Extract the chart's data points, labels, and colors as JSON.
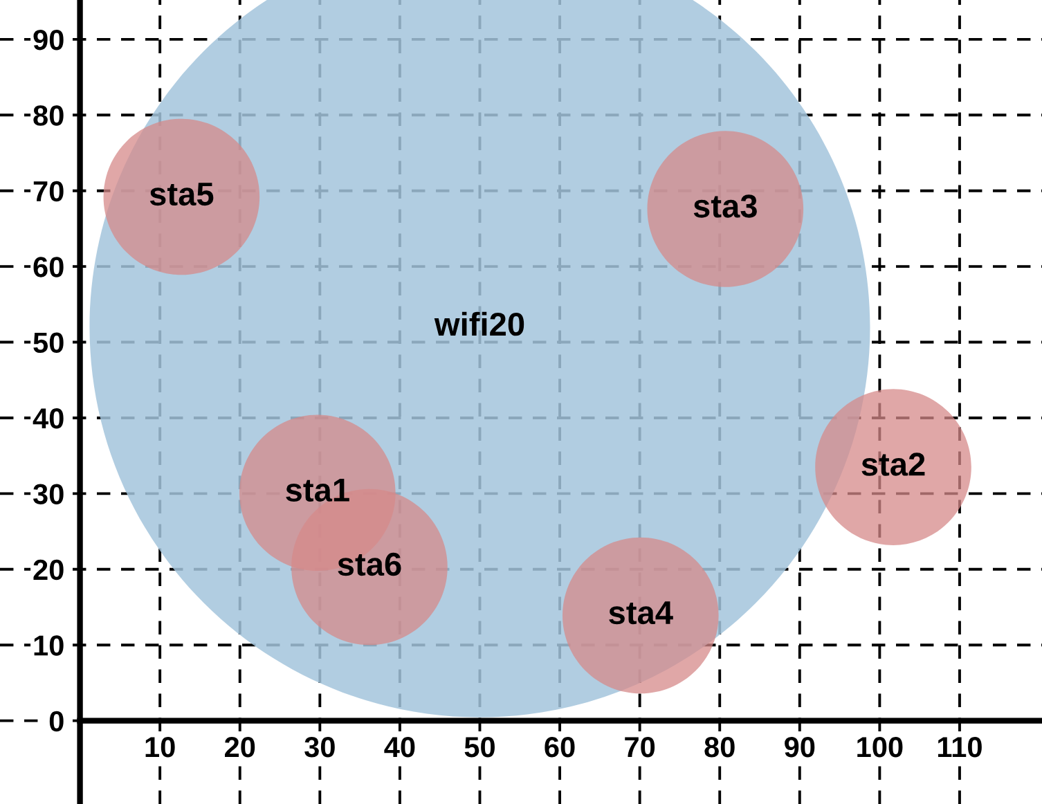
{
  "chart_data": {
    "type": "bubble",
    "series": [
      {
        "name": "wifi20",
        "color": "#a3c4dc",
        "x": [
          50
        ],
        "values": [
          52
        ],
        "sizes": [
          1
        ]
      },
      {
        "name": "sta5",
        "color": "#d58a89",
        "x": [
          12.7
        ],
        "values": [
          69.2
        ],
        "sizes": [
          0.04
        ]
      },
      {
        "name": "sta3",
        "color": "#d58a89",
        "x": [
          80.7
        ],
        "values": [
          67.6
        ],
        "sizes": [
          0.04
        ]
      },
      {
        "name": "sta2",
        "color": "#d58a89",
        "x": [
          101.7
        ],
        "values": [
          33.5
        ],
        "sizes": [
          0.04
        ]
      },
      {
        "name": "sta1",
        "color": "#d58a89",
        "x": [
          29.7
        ],
        "values": [
          30.1
        ],
        "sizes": [
          0.04
        ]
      },
      {
        "name": "sta6",
        "color": "#d58a89",
        "x": [
          36.2
        ],
        "values": [
          20.3
        ],
        "sizes": [
          0.04
        ]
      },
      {
        "name": "sta4",
        "color": "#d58a89",
        "x": [
          70.1
        ],
        "values": [
          13.9
        ],
        "sizes": [
          0.04
        ]
      }
    ],
    "xlim": [
      -10,
      120.3
    ],
    "ylim": [
      -11,
      95.2
    ],
    "xticks": [
      10,
      20,
      30,
      40,
      50,
      60,
      70,
      80,
      90,
      100,
      110
    ],
    "yticks": [
      0,
      10,
      20,
      30,
      40,
      50,
      60,
      70,
      80,
      90
    ],
    "grid": true,
    "legend": false
  }
}
